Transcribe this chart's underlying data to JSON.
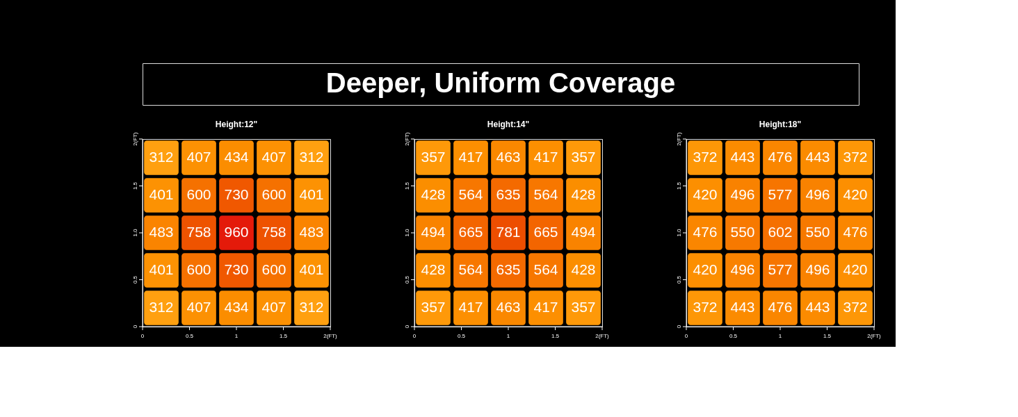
{
  "chart_data": [
    {
      "type": "other",
      "title": "Deeper, Uniform Coverage"
    },
    {
      "type": "heatmap",
      "title": "Height:12\"",
      "categories": [
        null,
        null,
        null,
        null,
        null
      ],
      "y_categories": [
        null,
        null,
        null,
        null,
        null
      ],
      "colors": [
        "#ffa010",
        "#e41a0a"
      ],
      "data_labels": true,
      "annotations": [
        "0",
        "0.5",
        "1",
        "1.5",
        "2(FT)",
        "0",
        "0.5",
        "1.0",
        "1.5",
        "2(FT)"
      ],
      "cells": [
        [
          312,
          407,
          434,
          407,
          312
        ],
        [
          401,
          600,
          730,
          600,
          401
        ],
        [
          483,
          758,
          960,
          758,
          483
        ],
        [
          401,
          600,
          730,
          600,
          401
        ],
        [
          312,
          407,
          434,
          407,
          312
        ]
      ]
    },
    {
      "type": "heatmap",
      "title": "Height:14\"",
      "categories": [
        null,
        null,
        null,
        null,
        null
      ],
      "y_categories": [
        null,
        null,
        null,
        null,
        null
      ],
      "colors": [
        "#ffa010",
        "#e41a0a"
      ],
      "data_labels": true,
      "annotations": [
        "0",
        "0.5",
        "1",
        "1.5",
        "2(FT)",
        "0",
        "0.5",
        "1.0",
        "1.5",
        "2(FT)"
      ],
      "cells": [
        [
          357,
          417,
          463,
          417,
          357
        ],
        [
          428,
          564,
          635,
          564,
          428
        ],
        [
          494,
          665,
          781,
          665,
          494
        ],
        [
          428,
          564,
          635,
          564,
          428
        ],
        [
          357,
          417,
          463,
          417,
          357
        ]
      ]
    },
    {
      "type": "heatmap",
      "title": "Height:18\"",
      "categories": [
        null,
        null,
        null,
        null,
        null
      ],
      "y_categories": [
        null,
        null,
        null,
        null,
        null
      ],
      "colors": [
        "#ffa010",
        "#e41a0a"
      ],
      "data_labels": true,
      "annotations": [
        "0",
        "0.5",
        "1",
        "1.5",
        "2(FT)",
        "0",
        "0.5",
        "1.0",
        "1.5",
        "2(FT)"
      ],
      "cells": [
        [
          372,
          443,
          476,
          443,
          372
        ],
        [
          420,
          496,
          577,
          496,
          420
        ],
        [
          476,
          550,
          602,
          550,
          476
        ],
        [
          420,
          496,
          577,
          496,
          420
        ],
        [
          372,
          443,
          476,
          443,
          372
        ]
      ]
    }
  ]
}
